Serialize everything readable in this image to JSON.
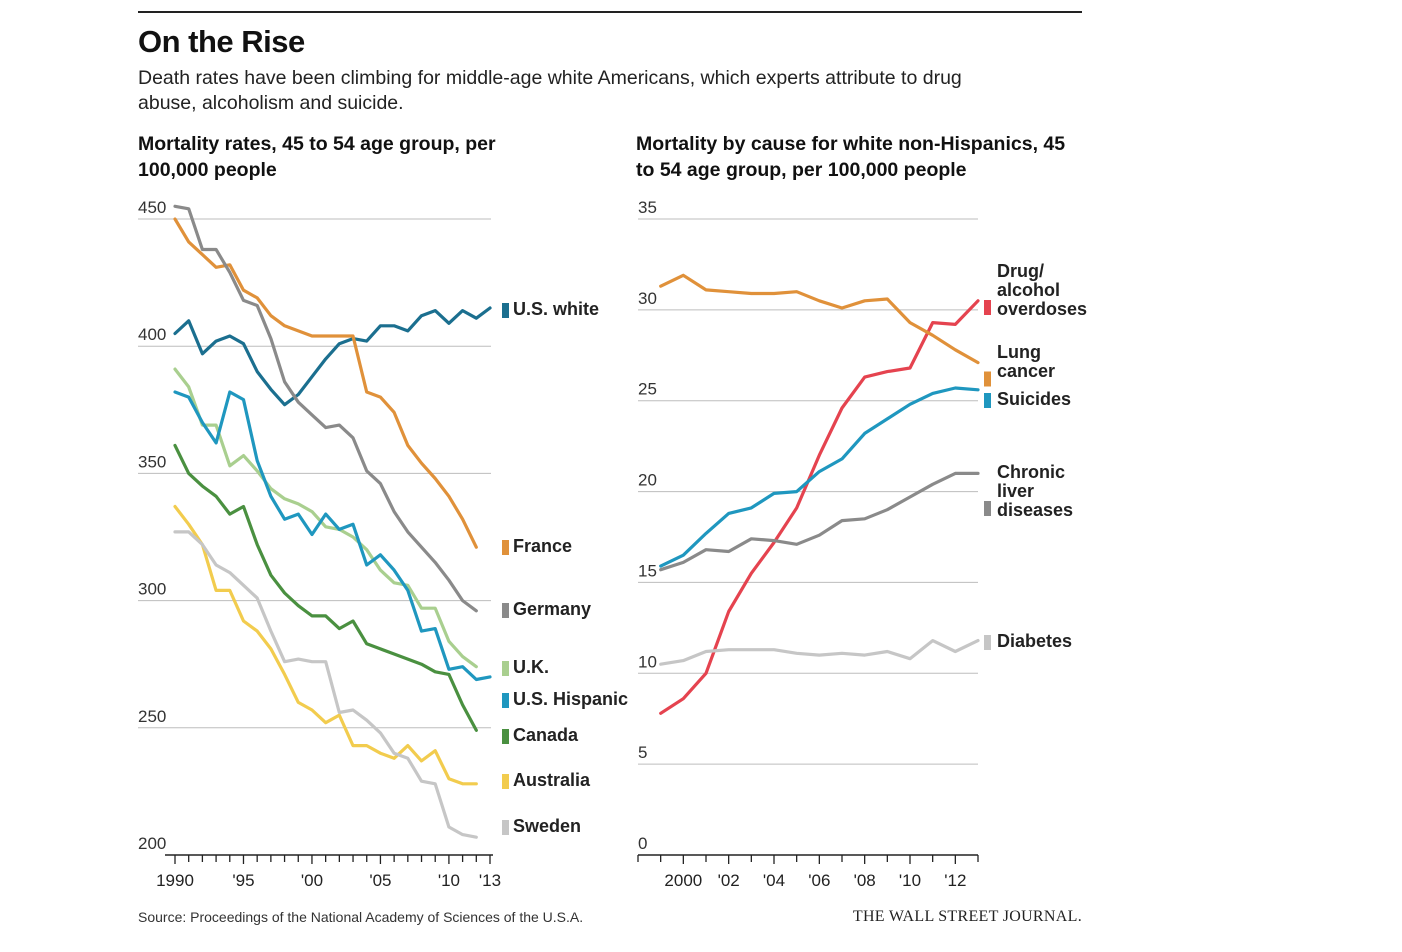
{
  "header": {
    "title": "On the Rise",
    "subtitle": "Death rates have been climbing for middle-age white Americans, which experts attribute to drug abuse, alcoholism and suicide."
  },
  "footer": {
    "source": "Source: Proceedings of the National Academy of Sciences of the U.S.A.",
    "brand": "THE WALL STREET JOURNAL."
  },
  "chart_data": [
    {
      "type": "line",
      "title": "Mortality rates, 45 to 54 age group, per 100,000 people",
      "xlabel": "",
      "ylabel": "",
      "xlim": [
        1990,
        2013
      ],
      "ylim": [
        200,
        450
      ],
      "yticks": [
        200,
        250,
        300,
        350,
        400,
        450
      ],
      "ytick_labels": [
        "200",
        "250",
        "300",
        "350",
        "400",
        "450"
      ],
      "xtick_labels": [
        {
          "x": 1990,
          "label": "1990"
        },
        {
          "x": 1995,
          "label": "'95"
        },
        {
          "x": 2000,
          "label": "'00"
        },
        {
          "x": 2005,
          "label": "'05"
        },
        {
          "x": 2010,
          "label": "'10"
        },
        {
          "x": 2013,
          "label": "'13"
        }
      ],
      "grid": true,
      "legend": "right-end labels",
      "series": [
        {
          "name": "U.S. white",
          "color": "#1b6f8f",
          "x": [
            1990,
            1991,
            1992,
            1993,
            1994,
            1995,
            1996,
            1997,
            1998,
            1999,
            2000,
            2001,
            2002,
            2003,
            2004,
            2005,
            2006,
            2007,
            2008,
            2009,
            2010,
            2011,
            2012,
            2013
          ],
          "values": [
            405,
            410,
            397,
            402,
            404,
            401,
            390,
            383,
            377,
            381,
            388,
            395,
            401,
            403,
            402,
            408,
            408,
            406,
            412,
            414,
            409,
            414,
            411,
            415
          ]
        },
        {
          "name": "France",
          "color": "#e0913a",
          "x": [
            1990,
            1991,
            1992,
            1993,
            1994,
            1995,
            1996,
            1997,
            1998,
            1999,
            2000,
            2001,
            2002,
            2003,
            2004,
            2005,
            2006,
            2007,
            2008,
            2009,
            2010,
            2011,
            2012
          ],
          "values": [
            450,
            441,
            436,
            431,
            432,
            422,
            419,
            412,
            408,
            406,
            404,
            404,
            404,
            404,
            382,
            380,
            374,
            361,
            354,
            348,
            341,
            332,
            321
          ]
        },
        {
          "name": "Germany",
          "color": "#8a8a8a",
          "x": [
            1990,
            1991,
            1992,
            1993,
            1994,
            1995,
            1996,
            1997,
            1998,
            1999,
            2000,
            2001,
            2002,
            2003,
            2004,
            2005,
            2006,
            2007,
            2008,
            2009,
            2010,
            2011,
            2012
          ],
          "values": [
            455,
            454,
            438,
            438,
            429,
            418,
            416,
            403,
            386,
            378,
            373,
            368,
            369,
            364,
            351,
            346,
            335,
            327,
            321,
            315,
            308,
            300,
            296
          ]
        },
        {
          "name": "U.K.",
          "color": "#a9cf8f",
          "x": [
            1990,
            1991,
            1992,
            1993,
            1994,
            1995,
            1996,
            1997,
            1998,
            1999,
            2000,
            2001,
            2002,
            2003,
            2004,
            2005,
            2006,
            2007,
            2008,
            2009,
            2010,
            2011,
            2012
          ],
          "values": [
            391,
            384,
            369,
            369,
            353,
            357,
            351,
            344,
            340,
            338,
            335,
            329,
            328,
            325,
            320,
            312,
            307,
            306,
            297,
            297,
            284,
            278,
            274
          ]
        },
        {
          "name": "U.S. Hispanic",
          "color": "#1f97bf",
          "x": [
            1990,
            1991,
            1992,
            1993,
            1994,
            1995,
            1996,
            1997,
            1998,
            1999,
            2000,
            2001,
            2002,
            2003,
            2004,
            2005,
            2006,
            2007,
            2008,
            2009,
            2010,
            2011,
            2012,
            2013
          ],
          "values": [
            382,
            380,
            370,
            362,
            382,
            379,
            355,
            341,
            332,
            334,
            326,
            334,
            328,
            330,
            314,
            318,
            312,
            304,
            288,
            289,
            273,
            274,
            269,
            270
          ]
        },
        {
          "name": "Canada",
          "color": "#4a9040",
          "x": [
            1990,
            1991,
            1992,
            1993,
            1994,
            1995,
            1996,
            1997,
            1998,
            1999,
            2000,
            2001,
            2002,
            2003,
            2004,
            2005,
            2006,
            2007,
            2008,
            2009,
            2010,
            2011,
            2012
          ],
          "values": [
            361,
            350,
            345,
            341,
            334,
            337,
            322,
            310,
            303,
            298,
            294,
            294,
            289,
            292,
            283,
            281,
            279,
            277,
            275,
            272,
            271,
            259,
            249
          ]
        },
        {
          "name": "Australia",
          "color": "#f2cc4e",
          "x": [
            1990,
            1991,
            1992,
            1993,
            1994,
            1995,
            1996,
            1997,
            1998,
            1999,
            2000,
            2001,
            2002,
            2003,
            2004,
            2005,
            2006,
            2007,
            2008,
            2009,
            2010,
            2011,
            2012
          ],
          "values": [
            337,
            330,
            322,
            304,
            304,
            292,
            288,
            281,
            271,
            260,
            257,
            252,
            255,
            243,
            243,
            240,
            238,
            243,
            237,
            241,
            230,
            228,
            228
          ]
        },
        {
          "name": "Sweden",
          "color": "#c6c6c6",
          "x": [
            1990,
            1991,
            1992,
            1993,
            1994,
            1995,
            1996,
            1997,
            1998,
            1999,
            2000,
            2001,
            2002,
            2003,
            2004,
            2005,
            2006,
            2007,
            2008,
            2009,
            2010,
            2011,
            2012
          ],
          "values": [
            327,
            327,
            322,
            314,
            311,
            306,
            301,
            288,
            276,
            277,
            276,
            276,
            256,
            257,
            253,
            248,
            240,
            238,
            229,
            228,
            211,
            208,
            207
          ]
        }
      ]
    },
    {
      "type": "line",
      "title": "Mortality by cause for white non-Hispanics, 45 to 54 age group, per 100,000 people",
      "xlabel": "",
      "ylabel": "",
      "xlim": [
        1998,
        2013
      ],
      "ylim": [
        0,
        35
      ],
      "yticks": [
        0,
        5,
        10,
        15,
        20,
        25,
        30,
        35
      ],
      "ytick_labels": [
        "0",
        "5",
        "10",
        "15",
        "20",
        "25",
        "30",
        "35"
      ],
      "xtick_labels": [
        {
          "x": 2000,
          "label": "2000"
        },
        {
          "x": 2002,
          "label": "'02"
        },
        {
          "x": 2004,
          "label": "'04"
        },
        {
          "x": 2006,
          "label": "'06"
        },
        {
          "x": 2008,
          "label": "'08"
        },
        {
          "x": 2010,
          "label": "'10"
        },
        {
          "x": 2012,
          "label": "'12"
        }
      ],
      "grid": true,
      "legend": "right-end labels",
      "series": [
        {
          "name": "Drug/ alcohol overdoses",
          "label_lines": [
            "Drug/",
            "alcohol",
            "overdoses"
          ],
          "color": "#e5434f",
          "x": [
            1999,
            2000,
            2001,
            2002,
            2003,
            2004,
            2005,
            2006,
            2007,
            2008,
            2009,
            2010,
            2011,
            2012,
            2013
          ],
          "values": [
            7.8,
            8.6,
            10.0,
            13.4,
            15.5,
            17.2,
            19.1,
            22.0,
            24.6,
            26.3,
            26.6,
            26.8,
            29.3,
            29.2,
            30.5
          ]
        },
        {
          "name": "Lung cancer",
          "label_lines": [
            "Lung",
            "cancer"
          ],
          "color": "#e0913a",
          "x": [
            1999,
            2000,
            2001,
            2002,
            2003,
            2004,
            2005,
            2006,
            2007,
            2008,
            2009,
            2010,
            2011,
            2012,
            2013
          ],
          "values": [
            31.3,
            31.9,
            31.1,
            31.0,
            30.9,
            30.9,
            31.0,
            30.5,
            30.1,
            30.5,
            30.6,
            29.3,
            28.6,
            27.8,
            27.1
          ]
        },
        {
          "name": "Suicides",
          "label_lines": [
            "Suicides"
          ],
          "color": "#1f97bf",
          "x": [
            1999,
            2000,
            2001,
            2002,
            2003,
            2004,
            2005,
            2006,
            2007,
            2008,
            2009,
            2010,
            2011,
            2012,
            2013
          ],
          "values": [
            15.9,
            16.5,
            17.7,
            18.8,
            19.1,
            19.9,
            20.0,
            21.1,
            21.8,
            23.2,
            24.0,
            24.8,
            25.4,
            25.7,
            25.6
          ]
        },
        {
          "name": "Chronic liver diseases",
          "label_lines": [
            "Chronic",
            "liver",
            "diseases"
          ],
          "color": "#8a8a8a",
          "x": [
            1999,
            2000,
            2001,
            2002,
            2003,
            2004,
            2005,
            2006,
            2007,
            2008,
            2009,
            2010,
            2011,
            2012,
            2013
          ],
          "values": [
            15.7,
            16.1,
            16.8,
            16.7,
            17.4,
            17.3,
            17.1,
            17.6,
            18.4,
            18.5,
            19.0,
            19.7,
            20.4,
            21.0,
            21.0
          ]
        },
        {
          "name": "Diabetes",
          "label_lines": [
            "Diabetes"
          ],
          "color": "#c6c6c6",
          "x": [
            1999,
            2000,
            2001,
            2002,
            2003,
            2004,
            2005,
            2006,
            2007,
            2008,
            2009,
            2010,
            2011,
            2012,
            2013
          ],
          "values": [
            10.5,
            10.7,
            11.2,
            11.3,
            11.3,
            11.3,
            11.1,
            11.0,
            11.1,
            11.0,
            11.2,
            10.8,
            11.8,
            11.2,
            11.8
          ]
        }
      ]
    }
  ]
}
